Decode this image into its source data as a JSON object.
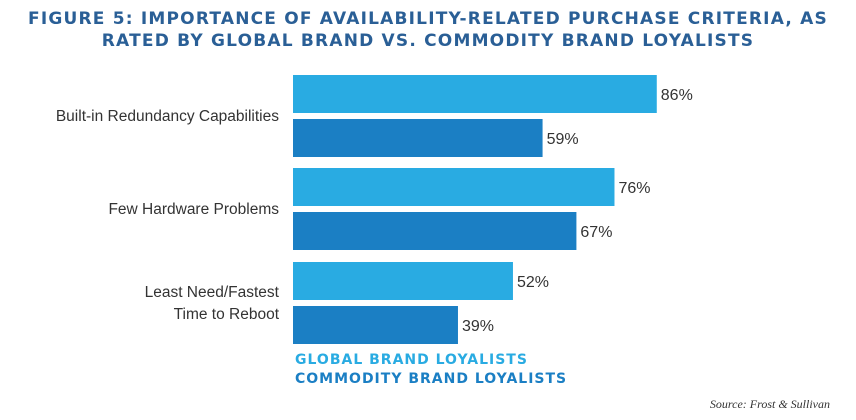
{
  "title_line1": "FIGURE 5: IMPORTANCE OF AVAILABILITY-RELATED PURCHASE CRITERIA, AS",
  "title_line2": "RATED BY GLOBAL BRAND VS. COMMODITY BRAND LOYALISTS",
  "source": "Source: Frost & Sullivan",
  "chart_data": {
    "type": "bar",
    "orientation": "horizontal",
    "categories": [
      [
        "Built-in Redundancy Capabilities"
      ],
      [
        "Few Hardware Problems"
      ],
      [
        "Least Need/Fastest",
        "Time to Reboot"
      ]
    ],
    "series": [
      {
        "name": "GLOBAL BRAND LOYALISTS",
        "values": [
          86,
          76,
          52
        ],
        "labels": [
          "86%",
          "76%",
          "52%"
        ],
        "color": "#29abe2"
      },
      {
        "name": "COMMODITY BRAND LOYALISTS",
        "values": [
          59,
          67,
          39
        ],
        "labels": [
          "59%",
          "67%",
          "39%"
        ],
        "color": "#1b7fc4"
      }
    ],
    "unit": "%",
    "xlim": [
      0,
      100
    ],
    "grid": false,
    "legend_position": "bottom",
    "label_color": "#333333"
  }
}
